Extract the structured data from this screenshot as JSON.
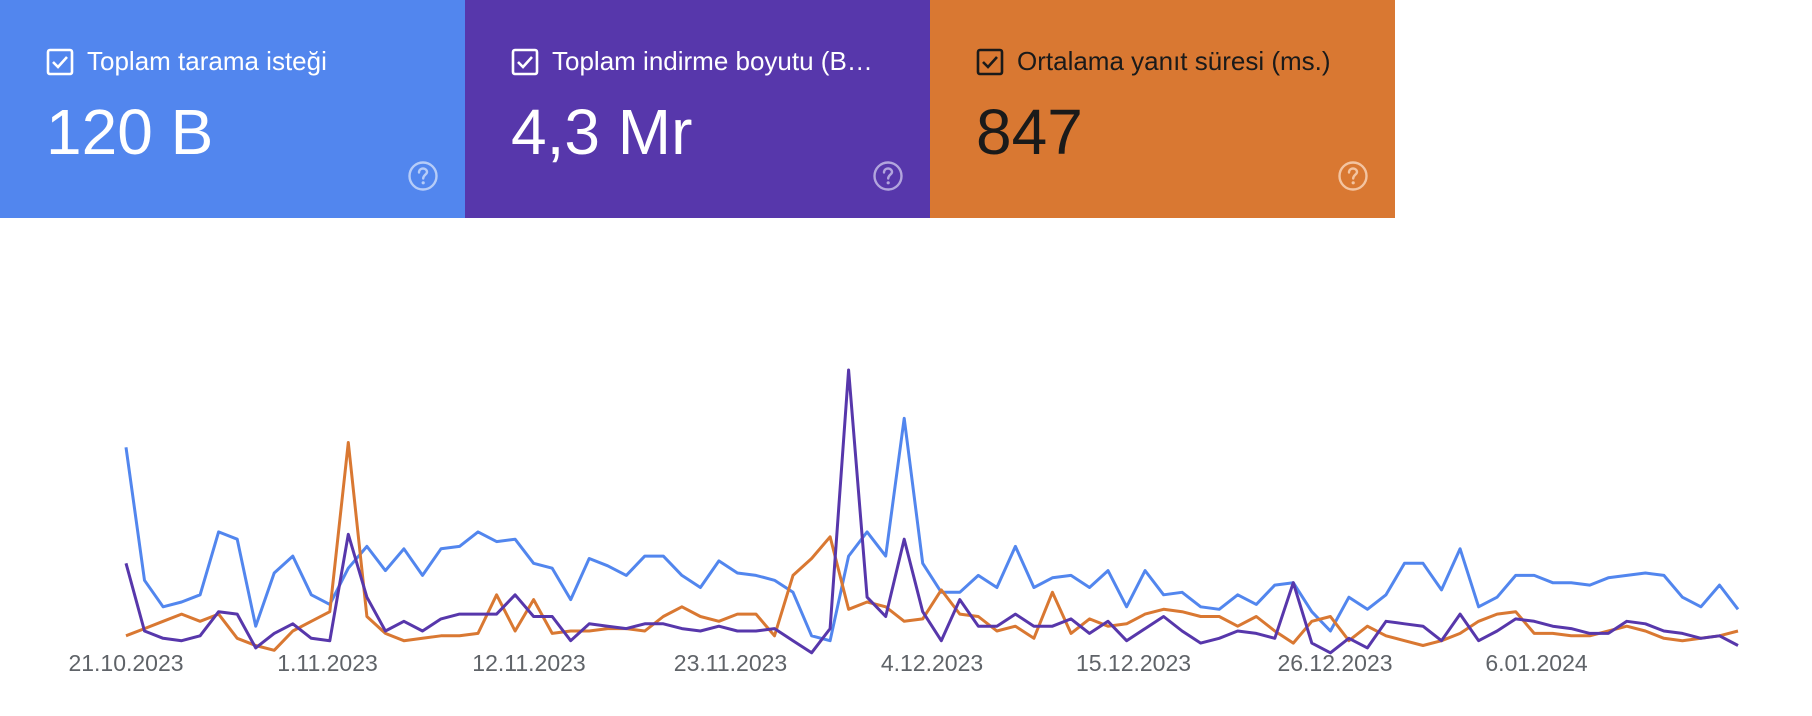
{
  "cards": [
    {
      "label": "Toplam tarama isteği",
      "value": "120 B",
      "checked": true,
      "bg": "#5286ee",
      "fg": "#ffffff",
      "help_color": "#b6ccf8"
    },
    {
      "label": "Toplam indirme boyutu (B…",
      "value": "4,3 Mr",
      "checked": true,
      "bg": "#5737ab",
      "fg": "#ffffff",
      "help_color": "#b2a5dd"
    },
    {
      "label": "Ortalama yanıt süresi (ms.)",
      "value": "847",
      "checked": true,
      "bg": "#d97832",
      "fg": "#1a1a1a",
      "help_color": "#f3c4a1"
    }
  ],
  "chart_data": {
    "type": "line",
    "x_ticks": [
      "21.10.2023",
      "1.11.2023",
      "12.11.2023",
      "23.11.2023",
      "4.12.2023",
      "15.12.2023",
      "26.12.2023",
      "6.01.2024"
    ],
    "x_start": "21.10.2023",
    "x_end": "17.01.2024",
    "y_axis_visible": false,
    "grid": false,
    "series": [
      {
        "color": "#5286ee",
        "values": [
          88,
          33,
          22,
          24,
          27,
          53,
          50,
          14,
          36,
          43,
          27,
          23,
          38,
          47,
          37,
          46,
          35,
          46,
          47,
          53,
          49,
          50,
          40,
          38,
          25,
          42,
          39,
          35,
          43,
          43,
          35,
          30,
          41,
          36,
          35,
          33,
          28,
          10,
          8,
          43,
          53,
          43,
          100,
          40,
          28,
          28,
          35,
          30,
          47,
          30,
          34,
          35,
          30,
          37,
          22,
          37,
          27,
          28,
          22,
          21,
          27,
          23,
          31,
          32,
          20,
          12,
          26,
          21,
          27,
          40,
          40,
          29,
          46,
          22,
          26,
          35,
          35,
          32,
          32,
          31,
          34,
          35,
          36,
          35,
          26,
          22,
          31,
          21
        ]
      },
      {
        "color": "#d97832",
        "values": [
          10,
          13,
          16,
          19,
          16,
          19,
          9,
          6,
          4,
          12,
          16,
          20,
          90,
          18,
          11,
          8,
          9,
          10,
          10,
          11,
          27,
          12,
          25,
          11,
          12,
          12,
          13,
          13,
          12,
          18,
          22,
          18,
          16,
          19,
          19,
          10,
          35,
          42,
          51,
          21,
          24,
          22,
          16,
          17,
          29,
          19,
          18,
          12,
          14,
          9,
          28,
          11,
          17,
          14,
          15,
          19,
          21,
          20,
          18,
          18,
          14,
          18,
          12,
          7,
          16,
          18,
          8,
          14,
          10,
          8,
          6,
          8,
          11,
          16,
          19,
          20,
          11,
          11,
          10,
          10,
          12,
          14,
          12,
          9,
          8,
          9,
          10,
          12
        ]
      },
      {
        "color": "#5737ab",
        "values": [
          40,
          12,
          9,
          8,
          10,
          20,
          19,
          5,
          11,
          15,
          9,
          8,
          52,
          26,
          12,
          16,
          12,
          17,
          19,
          19,
          19,
          27,
          18,
          18,
          8,
          15,
          14,
          13,
          15,
          15,
          13,
          12,
          14,
          12,
          12,
          13,
          8,
          3,
          13,
          120,
          26,
          18,
          50,
          20,
          8,
          25,
          14,
          14,
          19,
          14,
          14,
          17,
          11,
          16,
          8,
          13,
          18,
          12,
          7,
          9,
          12,
          11,
          9,
          32,
          7,
          3,
          9,
          5,
          16,
          15,
          14,
          8,
          19,
          8,
          12,
          17,
          16,
          14,
          13,
          11,
          11,
          16,
          15,
          12,
          11,
          9,
          10,
          6
        ]
      }
    ]
  }
}
